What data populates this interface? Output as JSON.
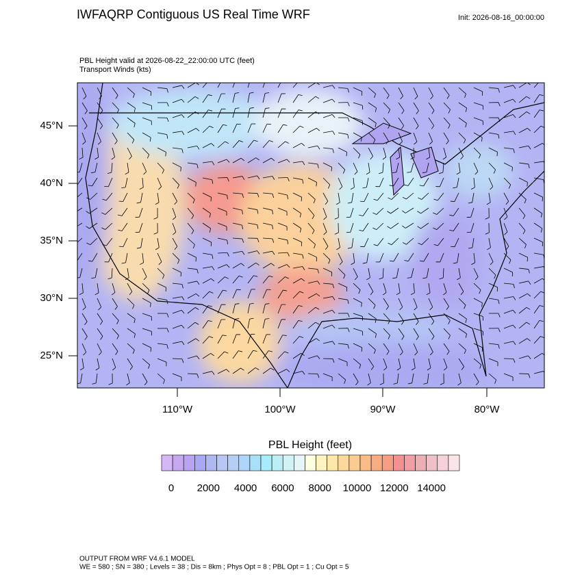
{
  "header": {
    "title": "IWFAQRP Contiguous US Real Time WRF",
    "init": "Init: 2026-08-16_00:00:00"
  },
  "subtitle": [
    "PBL Height valid at 2026-08-22_22:00:00 UTC   (feet)",
    "Transport Winds   (kts)"
  ],
  "map": {
    "lat_labels": [
      "45°N",
      "40°N",
      "35°N",
      "30°N",
      "25°N"
    ],
    "lon_labels": [
      "110°W",
      "100°W",
      "90°W",
      "80°W"
    ]
  },
  "colorbar": {
    "title": "PBL Height  (feet)",
    "colors": [
      "#d4b8f5",
      "#c5a8f0",
      "#b8a4f0",
      "#aaa8f2",
      "#b0b8f2",
      "#b8c6f2",
      "#b4cef6",
      "#aed6fa",
      "#a8e0fa",
      "#a6ecfa",
      "#bceef6",
      "#d2f2f6",
      "#e6f6f8",
      "#fefee0",
      "#fef2c0",
      "#fce6a8",
      "#fcd89c",
      "#fbcc92",
      "#f9bc88",
      "#f8ac84",
      "#f69e84",
      "#f49090",
      "#f0a0a4",
      "#ecb0b4",
      "#f0c0c8",
      "#f4d2d8",
      "#fae4e8"
    ],
    "ticks": [
      0,
      2000,
      4000,
      6000,
      8000,
      10000,
      12000,
      14000
    ]
  },
  "footer": [
    "OUTPUT FROM WRF V4.6.1 MODEL",
    "WE = 580 ; SN = 380 ; Levels = 38 ; Dis = 8km ; Phys Opt = 8 ; PBL Opt = 1 ; Cu Opt = 5"
  ]
}
